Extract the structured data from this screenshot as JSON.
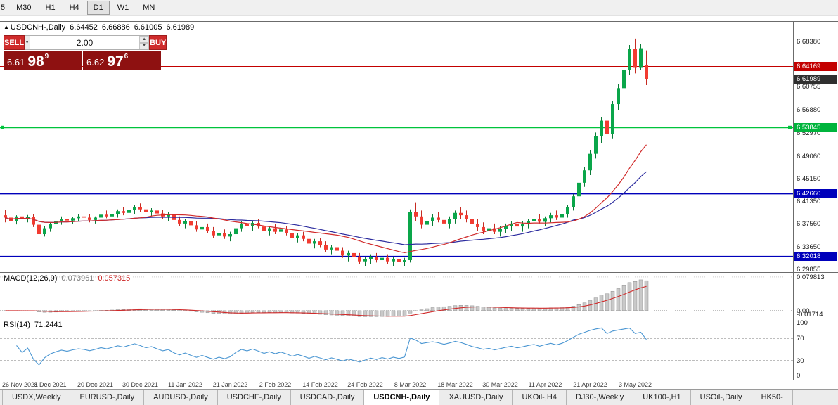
{
  "colors": {
    "up": "#0aa64a",
    "down": "#f23b31",
    "up_wick": "#0a7a36",
    "down_wick": "#c62b22",
    "ma_fast": "#d02a2a",
    "ma_slow": "#2b2b9e",
    "level_red": "#c30000",
    "level_green": "#00c33c",
    "level_blue": "#0000bb",
    "macd_hist_fill": "#c9c9c9",
    "macd_hist_stroke": "#8f8f8f",
    "macd_signal": "#d02a2a",
    "rsi_line": "#4a96d2"
  },
  "toolbar": {
    "timeframes": [
      "5",
      "M30",
      "H1",
      "H4",
      "D1",
      "W1",
      "MN"
    ],
    "active_timeframe": "D1"
  },
  "header": {
    "arrow": "▲",
    "symbol": "USDCNH-,Daily",
    "open": "6.64452",
    "high": "6.66886",
    "low": "6.61005",
    "close": "6.61989"
  },
  "trade": {
    "sell_label": "SELL",
    "buy_label": "BUY",
    "volume": "2.00",
    "combo_arrow": "▼",
    "spin_up": "▲",
    "spin_down": "▼",
    "sell_price_main": "6.61",
    "sell_price_big": "98",
    "sell_price_sup": "9",
    "buy_price_main": "6.62",
    "buy_price_big": "97",
    "buy_price_sup": "6"
  },
  "price_axis": {
    "labels": [
      {
        "text": "6.68380",
        "value": 6.6838
      },
      {
        "text": "6.60755",
        "value": 6.60755
      },
      {
        "text": "6.56880",
        "value": 6.5688
      },
      {
        "text": "6.52970",
        "value": 6.5297
      },
      {
        "text": "6.49060",
        "value": 6.4906
      },
      {
        "text": "6.45150",
        "value": 6.4515
      },
      {
        "text": "6.41350",
        "value": 6.4135
      },
      {
        "text": "6.37560",
        "value": 6.3756
      },
      {
        "text": "6.33650",
        "value": 6.3365
      },
      {
        "text": "6.29855",
        "value": 6.29855
      }
    ],
    "badges": [
      {
        "text": "6.64169",
        "value": 6.64169,
        "type": "red"
      },
      {
        "text": "6.61989",
        "value": 6.61989,
        "type": "dark"
      },
      {
        "text": "6.53845",
        "value": 6.53845,
        "type": "green"
      },
      {
        "text": "6.42660",
        "value": 6.4266,
        "type": "blue"
      },
      {
        "text": "6.32018",
        "value": 6.32018,
        "type": "blue"
      }
    ]
  },
  "levels": [
    {
      "value": 6.64169,
      "color": "red",
      "width": 1,
      "handles": false
    },
    {
      "value": 6.53845,
      "color": "green",
      "width": 2,
      "handles": true
    },
    {
      "value": 6.4266,
      "color": "blue",
      "width": 2,
      "handles": false
    },
    {
      "value": 6.32018,
      "color": "blue",
      "width": 2,
      "handles": false
    }
  ],
  "chart_data": {
    "type": "candlestick",
    "symbol": "USDCNH",
    "timeframe": "Daily",
    "y_range": {
      "max": 6.7172,
      "min": 6.2938
    },
    "overlays": [
      {
        "name": "ma-fast",
        "type": "sma",
        "period": 20
      },
      {
        "name": "ma-slow",
        "type": "sma",
        "period": 30
      }
    ],
    "ohlc": [
      [
        6.39,
        6.3985,
        6.378,
        6.386
      ],
      [
        6.386,
        6.3925,
        6.376,
        6.38
      ],
      [
        6.38,
        6.39,
        6.3745,
        6.388
      ],
      [
        6.388,
        6.3945,
        6.38,
        6.384
      ],
      [
        6.384,
        6.3905,
        6.378,
        6.387
      ],
      [
        6.387,
        6.3915,
        6.37,
        6.374
      ],
      [
        6.374,
        6.38,
        6.352,
        6.358
      ],
      [
        6.358,
        6.372,
        6.354,
        6.368
      ],
      [
        6.368,
        6.378,
        6.362,
        6.375
      ],
      [
        6.375,
        6.383,
        6.37,
        6.38
      ],
      [
        6.38,
        6.388,
        6.374,
        6.384
      ],
      [
        6.384,
        6.39,
        6.378,
        6.381
      ],
      [
        6.381,
        6.387,
        6.375,
        6.385
      ],
      [
        6.385,
        6.392,
        6.38,
        6.388
      ],
      [
        6.388,
        6.394,
        6.382,
        6.386
      ],
      [
        6.386,
        6.392,
        6.378,
        6.382
      ],
      [
        6.382,
        6.388,
        6.376,
        6.386
      ],
      [
        6.386,
        6.394,
        6.381,
        6.391
      ],
      [
        6.391,
        6.398,
        6.385,
        6.388
      ],
      [
        6.388,
        6.395,
        6.382,
        6.392
      ],
      [
        6.392,
        6.4,
        6.386,
        6.397
      ],
      [
        6.397,
        6.404,
        6.39,
        6.394
      ],
      [
        6.394,
        6.402,
        6.388,
        6.399
      ],
      [
        6.399,
        6.408,
        6.392,
        6.404
      ],
      [
        6.404,
        6.41,
        6.396,
        6.4
      ],
      [
        6.4,
        6.406,
        6.39,
        6.395
      ],
      [
        6.395,
        6.402,
        6.388,
        6.398
      ],
      [
        6.398,
        6.404,
        6.39,
        6.393
      ],
      [
        6.393,
        6.399,
        6.384,
        6.388
      ],
      [
        6.388,
        6.395,
        6.38,
        6.391
      ],
      [
        6.391,
        6.396,
        6.378,
        6.382
      ],
      [
        6.382,
        6.388,
        6.372,
        6.376
      ],
      [
        6.376,
        6.384,
        6.368,
        6.38
      ],
      [
        6.38,
        6.386,
        6.37,
        6.373
      ],
      [
        6.373,
        6.38,
        6.362,
        6.366
      ],
      [
        6.366,
        6.374,
        6.358,
        6.37
      ],
      [
        6.37,
        6.376,
        6.36,
        6.363
      ],
      [
        6.363,
        6.37,
        6.352,
        6.356
      ],
      [
        6.356,
        6.364,
        6.348,
        6.36
      ],
      [
        6.36,
        6.366,
        6.35,
        6.354
      ],
      [
        6.354,
        6.362,
        6.346,
        6.358
      ],
      [
        6.358,
        6.372,
        6.352,
        6.368
      ],
      [
        6.368,
        6.38,
        6.362,
        6.376
      ],
      [
        6.376,
        6.384,
        6.368,
        6.372
      ],
      [
        6.372,
        6.38,
        6.364,
        6.377
      ],
      [
        6.377,
        6.383,
        6.368,
        6.371
      ],
      [
        6.371,
        6.378,
        6.36,
        6.364
      ],
      [
        6.364,
        6.372,
        6.356,
        6.368
      ],
      [
        6.368,
        6.375,
        6.358,
        6.362
      ],
      [
        6.362,
        6.37,
        6.354,
        6.366
      ],
      [
        6.366,
        6.372,
        6.356,
        6.36
      ],
      [
        6.36,
        6.366,
        6.348,
        6.352
      ],
      [
        6.352,
        6.36,
        6.344,
        6.356
      ],
      [
        6.356,
        6.362,
        6.346,
        6.35
      ],
      [
        6.35,
        6.356,
        6.338,
        6.342
      ],
      [
        6.342,
        6.35,
        6.334,
        6.346
      ],
      [
        6.346,
        6.352,
        6.336,
        6.34
      ],
      [
        6.34,
        6.346,
        6.328,
        6.332
      ],
      [
        6.332,
        6.34,
        6.324,
        6.336
      ],
      [
        6.336,
        6.342,
        6.326,
        6.33
      ],
      [
        6.33,
        6.336,
        6.318,
        6.322
      ],
      [
        6.322,
        6.33,
        6.312,
        6.326
      ],
      [
        6.326,
        6.332,
        6.316,
        6.32
      ],
      [
        6.32,
        6.326,
        6.308,
        6.312
      ],
      [
        6.312,
        6.32,
        6.304,
        6.316
      ],
      [
        6.316,
        6.324,
        6.308,
        6.32
      ],
      [
        6.32,
        6.326,
        6.31,
        6.314
      ],
      [
        6.314,
        6.322,
        6.306,
        6.318
      ],
      [
        6.318,
        6.324,
        6.308,
        6.312
      ],
      [
        6.312,
        6.32,
        6.304,
        6.316
      ],
      [
        6.316,
        6.322,
        6.308,
        6.311
      ],
      [
        6.311,
        6.318,
        6.304,
        6.314
      ],
      [
        6.314,
        6.4,
        6.31,
        6.396
      ],
      [
        6.396,
        6.412,
        6.38,
        6.388
      ],
      [
        6.388,
        6.398,
        6.368,
        6.374
      ],
      [
        6.374,
        6.386,
        6.366,
        6.38
      ],
      [
        6.38,
        6.392,
        6.372,
        6.386
      ],
      [
        6.386,
        6.396,
        6.378,
        6.382
      ],
      [
        6.382,
        6.39,
        6.37,
        6.376
      ],
      [
        6.376,
        6.388,
        6.368,
        6.384
      ],
      [
        6.384,
        6.398,
        6.376,
        6.394
      ],
      [
        6.394,
        6.404,
        6.384,
        6.39
      ],
      [
        6.39,
        6.398,
        6.378,
        6.383
      ],
      [
        6.383,
        6.39,
        6.37,
        6.375
      ],
      [
        6.375,
        6.384,
        6.364,
        6.37
      ],
      [
        6.37,
        6.378,
        6.358,
        6.364
      ],
      [
        6.364,
        6.374,
        6.356,
        6.368
      ],
      [
        6.368,
        6.376,
        6.358,
        6.362
      ],
      [
        6.362,
        6.372,
        6.354,
        6.367
      ],
      [
        6.367,
        6.376,
        6.36,
        6.372
      ],
      [
        6.372,
        6.38,
        6.364,
        6.376
      ],
      [
        6.376,
        6.384,
        6.368,
        6.371
      ],
      [
        6.371,
        6.38,
        6.362,
        6.375
      ],
      [
        6.375,
        6.384,
        6.368,
        6.38
      ],
      [
        6.38,
        6.388,
        6.372,
        6.384
      ],
      [
        6.384,
        6.392,
        6.376,
        6.379
      ],
      [
        6.379,
        6.388,
        6.372,
        6.385
      ],
      [
        6.385,
        6.394,
        6.378,
        6.39
      ],
      [
        6.39,
        6.398,
        6.382,
        6.386
      ],
      [
        6.386,
        6.396,
        6.38,
        6.392
      ],
      [
        6.392,
        6.408,
        6.386,
        6.404
      ],
      [
        6.404,
        6.426,
        6.398,
        6.422
      ],
      [
        6.422,
        6.45,
        6.416,
        6.445
      ],
      [
        6.445,
        6.472,
        6.438,
        6.466
      ],
      [
        6.466,
        6.5,
        6.458,
        6.494
      ],
      [
        6.494,
        6.53,
        6.486,
        6.524
      ],
      [
        6.524,
        6.556,
        6.512,
        6.55
      ],
      [
        6.55,
        6.56,
        6.522,
        6.528
      ],
      [
        6.528,
        6.584,
        6.52,
        6.578
      ],
      [
        6.578,
        6.612,
        6.568,
        6.605
      ],
      [
        6.605,
        6.642,
        6.596,
        6.636
      ],
      [
        6.636,
        6.678,
        6.628,
        6.672
      ],
      [
        6.672,
        6.6888,
        6.63,
        6.6405
      ],
      [
        6.6405,
        6.6795,
        6.636,
        6.6725
      ],
      [
        6.6445,
        6.6689,
        6.6101,
        6.6199
      ]
    ],
    "date_ticks": [
      {
        "label": "26 Nov 2021",
        "index": 0
      },
      {
        "label": "8 Dec 2021",
        "index": 8
      },
      {
        "label": "20 Dec 2021",
        "index": 16
      },
      {
        "label": "30 Dec 2021",
        "index": 24
      },
      {
        "label": "11 Jan 2022",
        "index": 32
      },
      {
        "label": "21 Jan 2022",
        "index": 40
      },
      {
        "label": "2 Feb 2022",
        "index": 48
      },
      {
        "label": "14 Feb 2022",
        "index": 56
      },
      {
        "label": "24 Feb 2022",
        "index": 64
      },
      {
        "label": "8 Mar 2022",
        "index": 72
      },
      {
        "label": "18 Mar 2022",
        "index": 80
      },
      {
        "label": "30 Mar 2022",
        "index": 88
      },
      {
        "label": "11 Apr 2022",
        "index": 96
      },
      {
        "label": "21 Apr 2022",
        "index": 104
      },
      {
        "label": "3 May 2022",
        "index": 112
      }
    ]
  },
  "macd": {
    "title": "MACD(12,26,9)",
    "value_main": "0.073961",
    "value_signal": "0.057315",
    "axis_labels": [
      {
        "text": "0.079813",
        "value": 0.079813
      },
      {
        "text": "0.00",
        "value": 0
      },
      {
        "text": "-0.01714",
        "value": -0.01714
      }
    ],
    "range": {
      "max": 0.0895,
      "min": -0.0185
    }
  },
  "rsi": {
    "title": "RSI(14)",
    "value": "71.2441",
    "axis_labels": [
      {
        "text": "100",
        "value": 100
      },
      {
        "text": "70",
        "value": 70
      },
      {
        "text": "30",
        "value": 30
      },
      {
        "text": "0",
        "value": 0
      }
    ],
    "dashed_levels": [
      70,
      30
    ],
    "range": {
      "max": 105,
      "min": -5
    }
  },
  "tabs": {
    "items": [
      "USDX,Weekly",
      "EURUSD-,Daily",
      "AUDUSD-,Daily",
      "USDCHF-,Daily",
      "USDCAD-,Daily",
      "USDCNH-,Daily",
      "XAUUSD-,Daily",
      "UKOil-,H4",
      "DJ30-,Weekly",
      "UK100-,H1",
      "USOil-,Daily",
      "HK50-"
    ],
    "active": "USDCNH-,Daily"
  }
}
